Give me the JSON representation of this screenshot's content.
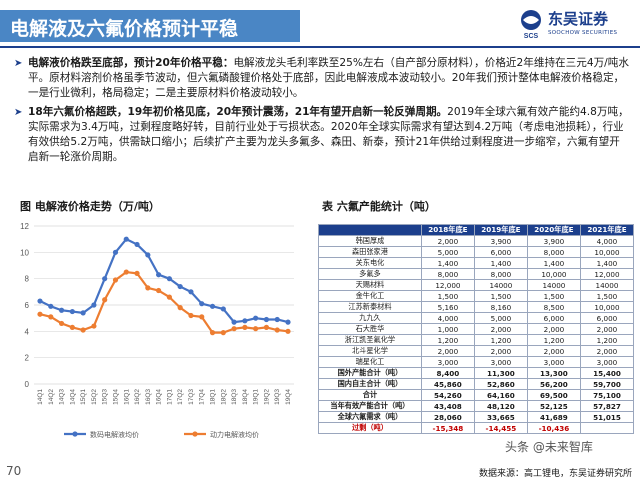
{
  "header": {
    "title": "电解液及六氟价格预计平稳",
    "logo_cn": "东吴证券",
    "logo_en": "SOOCHOW SECURITIES",
    "logo_mark": "SCS"
  },
  "bullets": [
    {
      "lead": "电解液价格跌至底部，预计20年价格平稳：",
      "text": "电解液龙头毛利率跌至25%左右（自产部分原材料），价格近2年维持在三元4万/吨水平。原材料溶剂价格虽季节波动，但六氟磷酸锂价格处于底部，因此电解液成本波动较小。20年我们预计整体电解液价格稳定，一是行业微利，格局稳定；二是主要原材料价格波动较小。"
    },
    {
      "lead": "18年六氟价格超跌，19年初价格见底，20年预计震荡，21年有望开启新一轮反弹周期。",
      "text": "2019年全球六氟有效产能约4.8万吨，实际需求为3.4万吨，过剩程度略好转，目前行业处于亏损状态。2020年全球实际需求有望达到4.2万吨（考虑电池损耗），行业有效供给5.2万吨，供需缺口缩小；后续扩产主要为龙头多氟多、森田、新泰，预计21年供给过剩程度进一步缩窄，六氟有望开启新一轮涨价周期。"
    }
  ],
  "figure": {
    "title": "图  电解液价格走势（万/吨）"
  },
  "table": {
    "title": "表  六氟产能统计（吨）",
    "headers": [
      "",
      "2018年底E",
      "2019年底E",
      "2020年底E",
      "2021年底E"
    ],
    "rows": [
      [
        "韩国厚成",
        "2,000",
        "3,900",
        "3,900",
        "4,000"
      ],
      [
        "森田张家港",
        "5,000",
        "6,000",
        "8,000",
        "10,000"
      ],
      [
        "关东电化",
        "1,400",
        "1,400",
        "1,400",
        "1,400"
      ],
      [
        "多氟多",
        "8,000",
        "8,000",
        "10,000",
        "12,000"
      ],
      [
        "天赐材料",
        "12,000",
        "14000",
        "14000",
        "14000"
      ],
      [
        "金牛化工",
        "1,500",
        "1,500",
        "1,500",
        "1,500"
      ],
      [
        "江苏新泰材料",
        "5,160",
        "8,160",
        "8,500",
        "10,000"
      ],
      [
        "九九久",
        "4,000",
        "5,000",
        "6,000",
        "6,000"
      ],
      [
        "石大胜华",
        "1,000",
        "2,000",
        "2,000",
        "2,000"
      ],
      [
        "浙江凯圣氟化学",
        "1,200",
        "1,200",
        "1,200",
        "1,200"
      ],
      [
        "北斗星化学",
        "2,000",
        "2,000",
        "2,000",
        "2,000"
      ],
      [
        "瑞星化工",
        "3,000",
        "3,000",
        "3,000",
        "3,000"
      ],
      [
        "国外产能合计（吨）",
        "8,400",
        "11,300",
        "13,300",
        "15,400"
      ],
      [
        "国内自主合计（吨）",
        "45,860",
        "52,860",
        "56,200",
        "59,700"
      ],
      [
        "合计",
        "54,260",
        "64,160",
        "69,500",
        "75,100"
      ],
      [
        "当年有效产能合计（吨）",
        "43,408",
        "48,120",
        "52,125",
        "57,827"
      ],
      [
        "全球六氟需求（吨）",
        "28,060",
        "33,665",
        "41,689",
        "51,015"
      ],
      [
        "过剩（吨）",
        "-15,348",
        "-14,455",
        "-10,436",
        ""
      ]
    ]
  },
  "chart_data": {
    "type": "line",
    "title": "电解液价格走势（万/吨）",
    "ylim": [
      0,
      12
    ],
    "yticks": [
      "0",
      "2",
      "4",
      "6",
      "8",
      "10",
      "12"
    ],
    "categories": [
      "14Q1",
      "14Q2",
      "14Q3",
      "14Q4",
      "15Q1",
      "15Q2",
      "15Q3",
      "15Q4",
      "16Q1",
      "16Q2",
      "16Q3",
      "16Q4",
      "17Q1",
      "17Q2",
      "17Q3",
      "17Q4",
      "18Q1",
      "18Q2",
      "18Q3",
      "18Q4",
      "19Q1",
      "19Q2",
      "19Q3",
      "19Q4"
    ],
    "series": [
      {
        "name": "数码电解液均价",
        "color": "#4472c4",
        "values": [
          6.3,
          5.9,
          5.6,
          5.5,
          5.4,
          6.0,
          8.0,
          10.0,
          11.0,
          10.6,
          9.8,
          8.3,
          8.0,
          7.4,
          7.0,
          6.1,
          5.9,
          5.7,
          4.7,
          4.8,
          5.0,
          4.9,
          4.9,
          4.7
        ]
      },
      {
        "name": "动力电解液均价",
        "color": "#ed7d31",
        "values": [
          5.3,
          5.1,
          4.6,
          4.3,
          4.1,
          4.4,
          6.4,
          7.9,
          8.5,
          8.4,
          7.3,
          7.1,
          6.6,
          5.8,
          5.2,
          5.1,
          3.9,
          3.9,
          4.2,
          4.3,
          4.2,
          4.3,
          4.1,
          4.0
        ]
      }
    ]
  },
  "footer": {
    "page": "70",
    "source": "数据来源：高工锂电，东吴证券研究所",
    "watermark": "头条 @未来智库"
  }
}
